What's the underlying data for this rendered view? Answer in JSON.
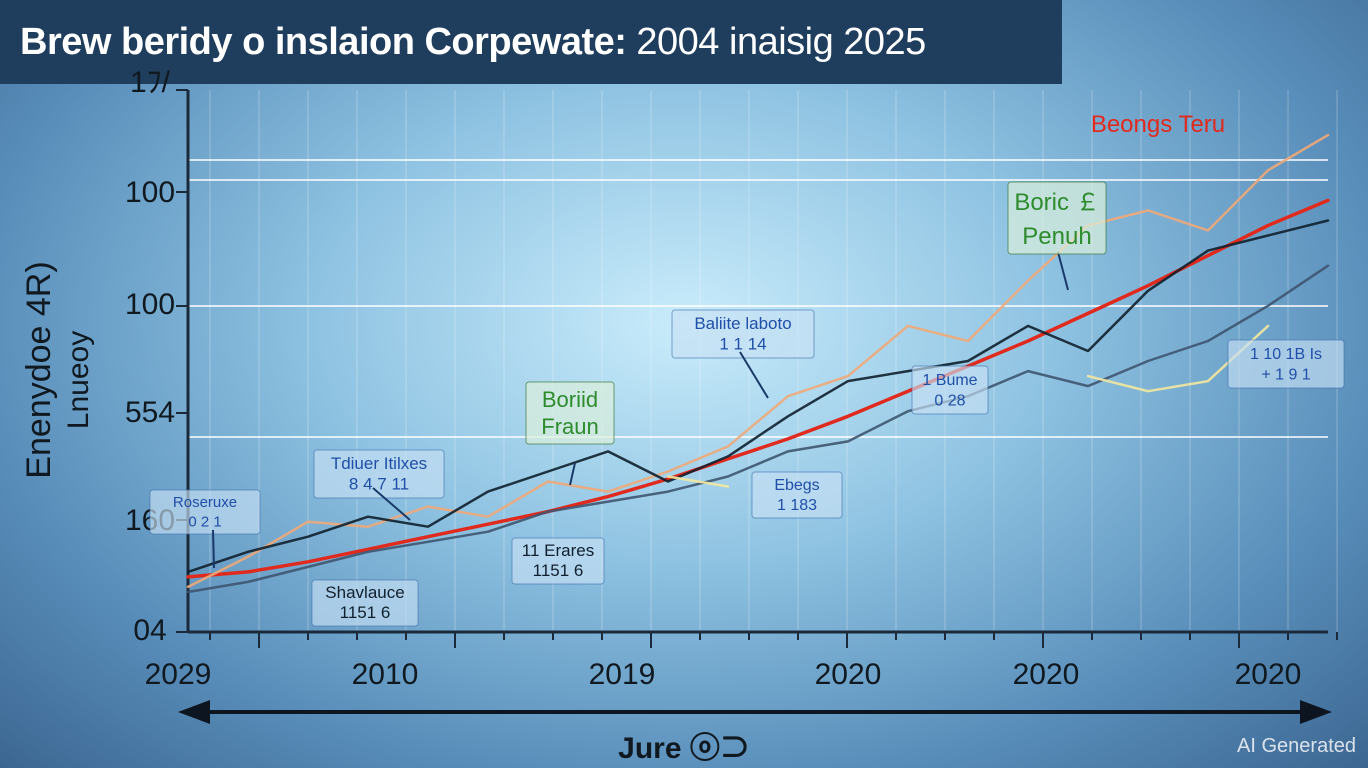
{
  "title": {
    "bold": "Brew beridy o inslaion Corpewate:",
    "light": "2004 inaisig 2025"
  },
  "watermark": "AI Generated",
  "chart_data": {
    "type": "line",
    "title": "Brew beridy o inslaion Corpewate: 2004 inaisig 2025",
    "xlabel": "Jure ⓞ⊃",
    "ylabel": [
      "Enenydoe 4R)",
      "Lnueoy"
    ],
    "x_ticks": [
      "2029",
      "2010",
      "2019",
      "2020",
      "2020",
      "2020"
    ],
    "y_ticks": [
      "1ﾌ/ ",
      "100",
      "100",
      "554",
      "160",
      "04"
    ],
    "legend": [
      {
        "label": "Beongs Teru",
        "color": "#e02a1e"
      },
      {
        "label": "Boric ￡\nPenuh",
        "color": "#2e8c2e"
      }
    ],
    "annotations": [
      {
        "text": "Boriid\nFraun",
        "color": "#2e8c2e"
      },
      {
        "text": "Baliite laboto\n1 1 14",
        "color": "#1f4fa8"
      },
      {
        "text": "Tdiuer Itilxes\n8 4 7 11",
        "color": "#1f4fa8"
      },
      {
        "text": "Roseruxe\n0 2 1",
        "color": "#1f4fa8"
      },
      {
        "text": "11 Erares\n1151 6",
        "color": "#10202e"
      },
      {
        "text": "Shavlauce\n1151 6",
        "color": "#10202e"
      },
      {
        "text": "Ebegs\n1 183",
        "color": "#1f4fa8"
      },
      {
        "text": "1 Bume\n0 28",
        "color": "#1f4fa8"
      },
      {
        "text": "1 10 1B  Is\n+ 1 9  1",
        "color": "#1f4fa8"
      }
    ],
    "series": [
      {
        "color": "#e02a1e",
        "values": [
          10,
          12,
          16,
          21,
          26,
          31,
          36,
          42,
          49,
          57,
          65,
          74,
          84,
          94,
          104,
          115,
          126,
          138,
          150,
          160
        ]
      },
      {
        "color": "#f0a878",
        "values": [
          6,
          18,
          32,
          30,
          38,
          34,
          48,
          44,
          52,
          62,
          82,
          90,
          110,
          104,
          128,
          150,
          156,
          148,
          172,
          186
        ]
      },
      {
        "color": "#10202e",
        "values": [
          12,
          20,
          26,
          34,
          30,
          44,
          52,
          60,
          48,
          58,
          74,
          88,
          92,
          96,
          110,
          100,
          124,
          140,
          146,
          152
        ]
      },
      {
        "color": "#3e5570",
        "values": [
          4,
          8,
          14,
          20,
          24,
          28,
          36,
          40,
          44,
          50,
          60,
          64,
          76,
          82,
          92,
          86,
          96,
          104,
          118,
          134
        ]
      },
      {
        "color": "#f2e8a0",
        "values": [
          null,
          null,
          null,
          null,
          null,
          null,
          null,
          null,
          50,
          46,
          null,
          null,
          null,
          null,
          null,
          90,
          84,
          88,
          110,
          null
        ]
      }
    ],
    "ylim": [
      0,
      200
    ],
    "grid": true
  }
}
